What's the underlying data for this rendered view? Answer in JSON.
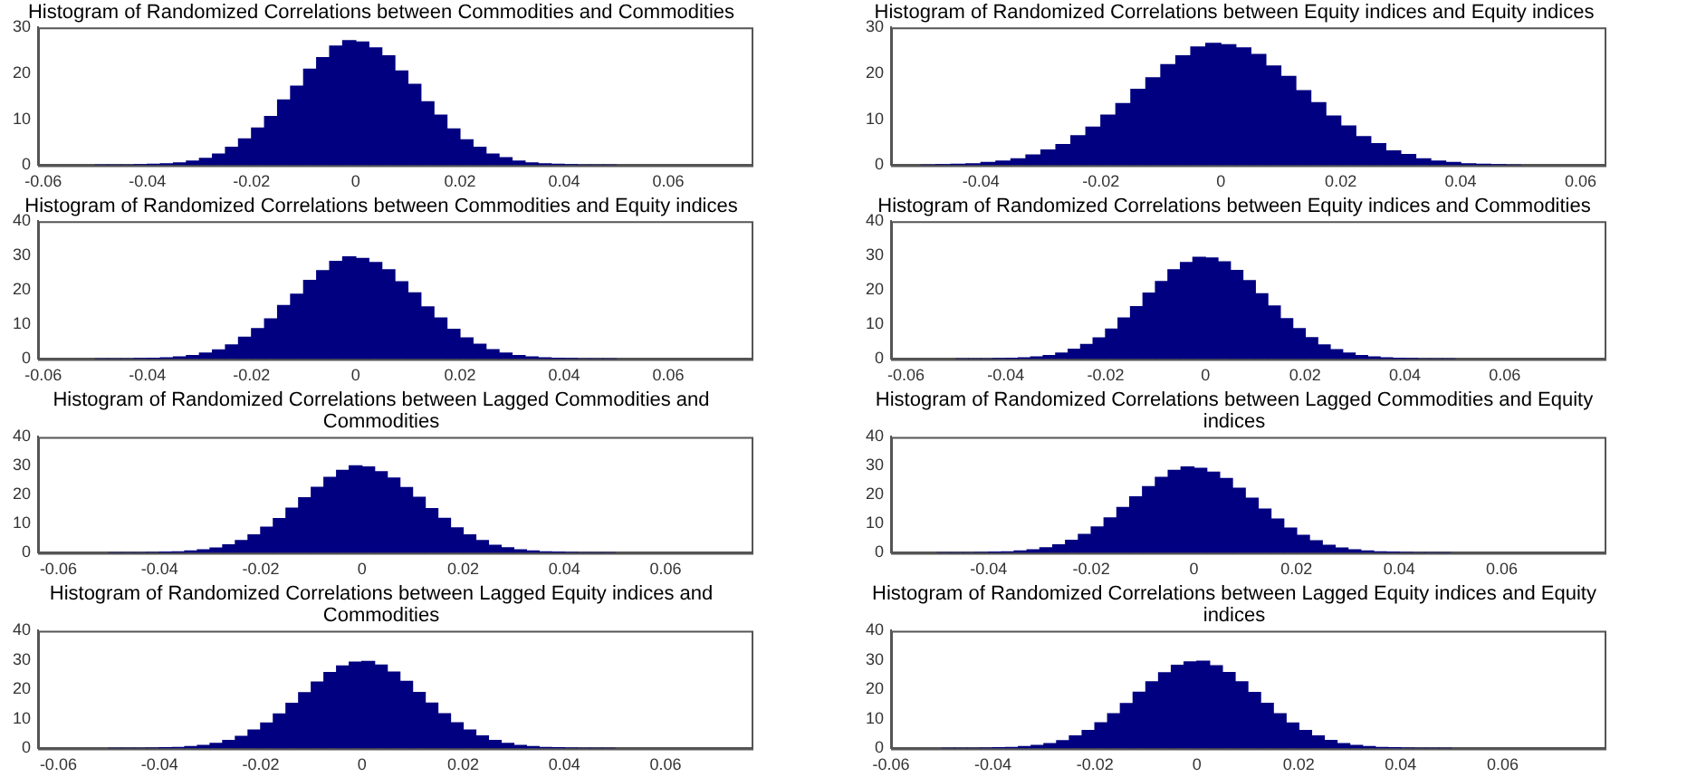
{
  "chart_data": [
    {
      "type": "histogram",
      "title": "Histogram of Randomized Correlations between Commodities and Commodities",
      "color": "#000080",
      "bins": [
        -0.05,
        -0.0475,
        -0.045,
        -0.0425,
        -0.04,
        -0.0375,
        -0.035,
        -0.0325,
        -0.03,
        -0.0275,
        -0.025,
        -0.0225,
        -0.02,
        -0.0175,
        -0.015,
        -0.0125,
        -0.01,
        -0.0075,
        -0.005,
        -0.0025,
        0,
        0.0025,
        0.005,
        0.0075,
        0.01,
        0.0125,
        0.015,
        0.0175,
        0.02,
        0.0225,
        0.025,
        0.0275,
        0.03,
        0.0325,
        0.035,
        0.0375,
        0.04,
        0.0425,
        0.045,
        0.0475,
        0.05
      ],
      "values": [
        0,
        0,
        0,
        0.1,
        0.2,
        0.3,
        0.5,
        0.9,
        1.5,
        2.4,
        3.9,
        5.7,
        8.1,
        10.6,
        14.2,
        17.2,
        20.9,
        23.4,
        25.9,
        27.1,
        26.8,
        25.5,
        23.8,
        20.5,
        17.6,
        13.8,
        10.9,
        7.9,
        5.5,
        3.9,
        2.4,
        1.6,
        0.9,
        0.5,
        0.3,
        0.2,
        0.1,
        0,
        0,
        0
      ],
      "xlim": [
        -0.061,
        0.076
      ],
      "xticks": [
        -0.06,
        -0.04,
        -0.02,
        0,
        0.02,
        0.04,
        0.06
      ],
      "ylim": [
        0,
        30
      ],
      "yticks": [
        0,
        10,
        20,
        30
      ]
    },
    {
      "type": "histogram",
      "title": "Histogram of Randomized Correlations between Equity indices and Equity indices",
      "color": "#000080",
      "bins": [
        -0.05,
        -0.0475,
        -0.045,
        -0.0425,
        -0.04,
        -0.0375,
        -0.035,
        -0.0325,
        -0.03,
        -0.0275,
        -0.025,
        -0.0225,
        -0.02,
        -0.0175,
        -0.015,
        -0.0125,
        -0.01,
        -0.0075,
        -0.005,
        -0.0025,
        0,
        0.0025,
        0.005,
        0.0075,
        0.01,
        0.0125,
        0.015,
        0.0175,
        0.02,
        0.0225,
        0.025,
        0.0275,
        0.03,
        0.0325,
        0.035,
        0.0375,
        0.04,
        0.0425,
        0.045,
        0.0475,
        0.05
      ],
      "values": [
        0,
        0.1,
        0.2,
        0.3,
        0.6,
        0.9,
        1.4,
        2.2,
        3.3,
        4.5,
        6.4,
        8.3,
        10.9,
        13.4,
        16.5,
        19.0,
        21.9,
        23.8,
        25.7,
        26.5,
        26.2,
        25.5,
        24.1,
        21.6,
        19.3,
        16.2,
        13.6,
        10.7,
        8.5,
        6.2,
        4.7,
        3.1,
        2.3,
        1.4,
        0.9,
        0.6,
        0.3,
        0.2,
        0.1,
        0
      ],
      "xlim": [
        -0.055,
        0.064
      ],
      "xticks": [
        -0.04,
        -0.02,
        0,
        0.02,
        0.04,
        0.06
      ],
      "ylim": [
        0,
        30
      ],
      "yticks": [
        0,
        10,
        20,
        30
      ]
    },
    {
      "type": "histogram",
      "title": "Histogram of Randomized Correlations between Commodities and Equity indices",
      "color": "#000080",
      "bins": [
        -0.05,
        -0.0475,
        -0.045,
        -0.0425,
        -0.04,
        -0.0375,
        -0.035,
        -0.0325,
        -0.03,
        -0.0275,
        -0.025,
        -0.0225,
        -0.02,
        -0.0175,
        -0.015,
        -0.0125,
        -0.01,
        -0.0075,
        -0.005,
        -0.0025,
        0,
        0.0025,
        0.005,
        0.0075,
        0.01,
        0.0125,
        0.015,
        0.0175,
        0.02,
        0.0225,
        0.025,
        0.0275,
        0.03,
        0.0325,
        0.035,
        0.0375,
        0.04,
        0.0425,
        0.045,
        0.0475,
        0.05
      ],
      "values": [
        0,
        0,
        0,
        0.1,
        0.2,
        0.3,
        0.6,
        1.0,
        1.7,
        2.6,
        4.1,
        6.3,
        8.8,
        11.6,
        15.5,
        18.8,
        22.8,
        25.6,
        28.3,
        29.6,
        29.2,
        28.0,
        25.9,
        22.4,
        19.2,
        15.1,
        11.9,
        8.6,
        6.1,
        4.3,
        2.7,
        1.7,
        1.0,
        0.6,
        0.3,
        0.2,
        0.1,
        0,
        0,
        0
      ],
      "xlim": [
        -0.061,
        0.076
      ],
      "xticks": [
        -0.06,
        -0.04,
        -0.02,
        0,
        0.02,
        0.04,
        0.06
      ],
      "ylim": [
        0,
        40
      ],
      "yticks": [
        0,
        10,
        20,
        30,
        40
      ]
    },
    {
      "type": "histogram",
      "title": "Histogram of Randomized Correlations between Equity indices and Commodities",
      "color": "#000080",
      "bins": [
        -0.05,
        -0.0475,
        -0.045,
        -0.0425,
        -0.04,
        -0.0375,
        -0.035,
        -0.0325,
        -0.03,
        -0.0275,
        -0.025,
        -0.0225,
        -0.02,
        -0.0175,
        -0.015,
        -0.0125,
        -0.01,
        -0.0075,
        -0.005,
        -0.0025,
        0,
        0.0025,
        0.005,
        0.0075,
        0.01,
        0.0125,
        0.015,
        0.0175,
        0.02,
        0.0225,
        0.025,
        0.0275,
        0.03,
        0.0325,
        0.035,
        0.0375,
        0.04,
        0.0425,
        0.045,
        0.0475,
        0.05
      ],
      "values": [
        0,
        0,
        0,
        0.1,
        0.2,
        0.3,
        0.6,
        1.0,
        1.7,
        2.8,
        4.2,
        6.1,
        8.7,
        11.9,
        15.2,
        19.1,
        22.5,
        25.9,
        28.0,
        29.5,
        29.3,
        28.2,
        25.7,
        22.7,
        18.9,
        15.4,
        11.7,
        8.8,
        6.2,
        4.1,
        2.7,
        1.7,
        1.0,
        0.6,
        0.3,
        0.2,
        0.1,
        0,
        0,
        0
      ],
      "xlim": [
        -0.063,
        0.08
      ],
      "xticks": [
        -0.06,
        -0.04,
        -0.02,
        0,
        0.02,
        0.04,
        0.06
      ],
      "ylim": [
        0,
        40
      ],
      "yticks": [
        0,
        10,
        20,
        30,
        40
      ]
    },
    {
      "type": "histogram",
      "title": "Histogram of Randomized Correlations between Lagged Commodities and Commodities",
      "color": "#000080",
      "bins": [
        -0.05,
        -0.0475,
        -0.045,
        -0.0425,
        -0.04,
        -0.0375,
        -0.035,
        -0.0325,
        -0.03,
        -0.0275,
        -0.025,
        -0.0225,
        -0.02,
        -0.0175,
        -0.015,
        -0.0125,
        -0.01,
        -0.0075,
        -0.005,
        -0.0025,
        0,
        0.0025,
        0.005,
        0.0075,
        0.01,
        0.0125,
        0.015,
        0.0175,
        0.02,
        0.0225,
        0.025,
        0.0275,
        0.03,
        0.0325,
        0.035,
        0.0375,
        0.04,
        0.0425,
        0.045,
        0.0475,
        0.05
      ],
      "values": [
        0,
        0,
        0,
        0.1,
        0.2,
        0.3,
        0.6,
        1.0,
        1.6,
        2.7,
        4.2,
        6.2,
        8.8,
        11.8,
        15.4,
        19.0,
        22.6,
        26.0,
        28.4,
        30.0,
        29.6,
        28.0,
        25.8,
        22.5,
        19.1,
        15.2,
        11.9,
        8.6,
        6.2,
        4.2,
        2.6,
        1.7,
        1.0,
        0.6,
        0.3,
        0.2,
        0.1,
        0,
        0,
        0
      ],
      "xlim": [
        -0.064,
        0.077
      ],
      "xticks": [
        -0.06,
        -0.04,
        -0.02,
        0,
        0.02,
        0.04,
        0.06
      ],
      "ylim": [
        0,
        40
      ],
      "yticks": [
        0,
        10,
        20,
        30,
        40
      ]
    },
    {
      "type": "histogram",
      "title": "Histogram of Randomized Correlations between Lagged Commodities and Equity indices",
      "color": "#000080",
      "bins": [
        -0.05,
        -0.0475,
        -0.045,
        -0.0425,
        -0.04,
        -0.0375,
        -0.035,
        -0.0325,
        -0.03,
        -0.0275,
        -0.025,
        -0.0225,
        -0.02,
        -0.0175,
        -0.015,
        -0.0125,
        -0.01,
        -0.0075,
        -0.005,
        -0.0025,
        0,
        0.0025,
        0.005,
        0.0075,
        0.01,
        0.0125,
        0.015,
        0.0175,
        0.02,
        0.0225,
        0.025,
        0.0275,
        0.03,
        0.0325,
        0.035,
        0.0375,
        0.04,
        0.0425,
        0.045,
        0.0475,
        0.05
      ],
      "values": [
        0,
        0,
        0,
        0.1,
        0.2,
        0.3,
        0.6,
        1.0,
        1.7,
        2.7,
        4.3,
        6.3,
        8.9,
        12.0,
        15.6,
        19.3,
        22.8,
        26.0,
        28.4,
        29.6,
        29.1,
        27.8,
        25.6,
        22.3,
        18.8,
        15.1,
        11.6,
        8.5,
        6.0,
        4.1,
        2.6,
        1.6,
        1.0,
        0.6,
        0.3,
        0.2,
        0.1,
        0,
        0,
        0
      ],
      "xlim": [
        -0.059,
        0.08
      ],
      "xticks": [
        -0.04,
        -0.02,
        0,
        0.02,
        0.04,
        0.06
      ],
      "ylim": [
        0,
        40
      ],
      "yticks": [
        0,
        10,
        20,
        30,
        40
      ]
    },
    {
      "type": "histogram",
      "title": "Histogram of Randomized Correlations between Lagged Equity indices and Commodities",
      "color": "#000080",
      "bins": [
        -0.05,
        -0.0475,
        -0.045,
        -0.0425,
        -0.04,
        -0.0375,
        -0.035,
        -0.0325,
        -0.03,
        -0.0275,
        -0.025,
        -0.0225,
        -0.02,
        -0.0175,
        -0.015,
        -0.0125,
        -0.01,
        -0.0075,
        -0.005,
        -0.0025,
        0,
        0.0025,
        0.005,
        0.0075,
        0.01,
        0.0125,
        0.015,
        0.0175,
        0.02,
        0.0225,
        0.025,
        0.0275,
        0.03,
        0.0325,
        0.035,
        0.0375,
        0.04,
        0.0425,
        0.045,
        0.0475,
        0.05
      ],
      "values": [
        0,
        0,
        0,
        0.1,
        0.2,
        0.3,
        0.6,
        1.0,
        1.7,
        2.7,
        4.1,
        6.2,
        8.6,
        11.7,
        15.3,
        18.9,
        22.5,
        25.8,
        28.0,
        29.3,
        29.5,
        28.3,
        25.9,
        22.8,
        19.0,
        15.4,
        11.8,
        8.7,
        6.2,
        4.2,
        2.7,
        1.7,
        1.0,
        0.6,
        0.3,
        0.2,
        0.1,
        0,
        0,
        0
      ],
      "xlim": [
        -0.064,
        0.077
      ],
      "xticks": [
        -0.06,
        -0.04,
        -0.02,
        0,
        0.02,
        0.04,
        0.06
      ],
      "ylim": [
        0,
        40
      ],
      "yticks": [
        0,
        10,
        20,
        30,
        40
      ]
    },
    {
      "type": "histogram",
      "title": "Histogram of Randomized Correlations between Lagged Equity indices and Equity indices",
      "color": "#000080",
      "bins": [
        -0.05,
        -0.0475,
        -0.045,
        -0.0425,
        -0.04,
        -0.0375,
        -0.035,
        -0.0325,
        -0.03,
        -0.0275,
        -0.025,
        -0.0225,
        -0.02,
        -0.0175,
        -0.015,
        -0.0125,
        -0.01,
        -0.0075,
        -0.005,
        -0.0025,
        0,
        0.0025,
        0.005,
        0.0075,
        0.01,
        0.0125,
        0.015,
        0.0175,
        0.02,
        0.0225,
        0.025,
        0.0275,
        0.03,
        0.0325,
        0.035,
        0.0375,
        0.04,
        0.0425,
        0.045,
        0.0475,
        0.05
      ],
      "values": [
        0,
        0,
        0,
        0.1,
        0.2,
        0.3,
        0.6,
        1.0,
        1.6,
        2.6,
        4.2,
        6.1,
        8.7,
        11.8,
        15.2,
        19.1,
        22.6,
        25.7,
        28.2,
        29.4,
        29.6,
        28.1,
        25.8,
        22.6,
        19.0,
        15.3,
        11.8,
        8.6,
        6.1,
        4.2,
        2.7,
        1.6,
        1.0,
        0.6,
        0.3,
        0.2,
        0.1,
        0,
        0,
        0
      ],
      "xlim": [
        -0.06,
        0.08
      ],
      "xticks": [
        -0.06,
        -0.04,
        -0.02,
        0,
        0.02,
        0.04,
        0.06
      ],
      "ylim": [
        0,
        40
      ],
      "yticks": [
        0,
        10,
        20,
        30,
        40
      ]
    }
  ]
}
